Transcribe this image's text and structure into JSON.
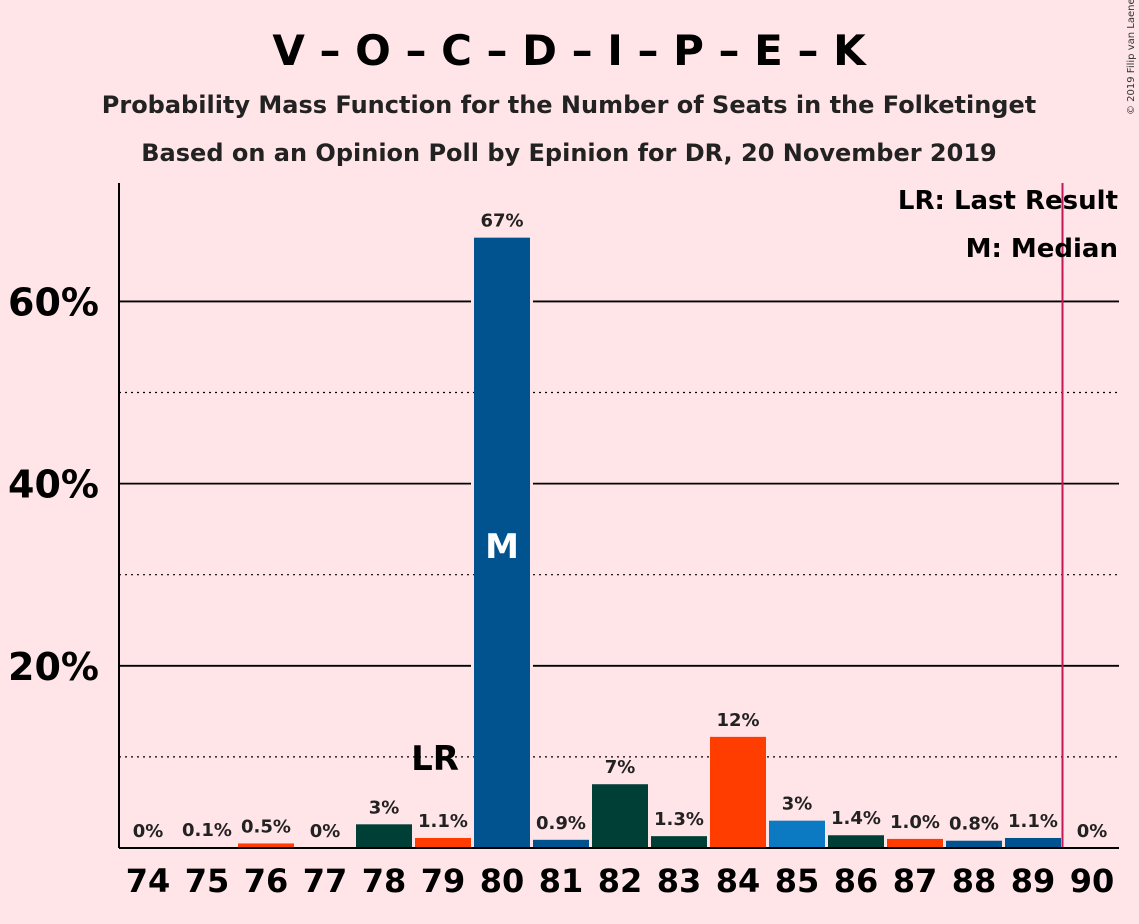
{
  "chart_data": {
    "type": "bar",
    "title": "V – O – C – D – I – P – E – K",
    "subtitle_1": "Probability Mass Function for the Number of Seats in the Folketinget",
    "subtitle_2": "Based on an Opinion Poll by Epinion for DR, 20 November 2019",
    "copyright": "© 2019 Filip van Laenen",
    "categories": [
      "74",
      "75",
      "76",
      "77",
      "78",
      "79",
      "80",
      "81",
      "82",
      "83",
      "84",
      "85",
      "86",
      "87",
      "88",
      "89",
      "90"
    ],
    "values": [
      0,
      0.1,
      0.5,
      0,
      2.6,
      1.1,
      67,
      0.9,
      7,
      1.3,
      12.2,
      3,
      1.4,
      1.0,
      0.8,
      1.1,
      0
    ],
    "value_labels": [
      "0%",
      "0.1%",
      "0.5%",
      "0%",
      "3%",
      "1.1%",
      "67%",
      "0.9%",
      "7%",
      "1.3%",
      "12%",
      "3%",
      "1.4%",
      "1.0%",
      "0.8%",
      "1.1%",
      "0%"
    ],
    "bar_colors": [
      "#FF3D00",
      "#0B7AC2",
      "#FF3D00",
      "#003F36",
      "#003F36",
      "#FF3D00",
      "#00538F",
      "#00538F",
      "#003F36",
      "#003F36",
      "#FF3D00",
      "#0B7AC2",
      "#003F36",
      "#FF3D00",
      "#00538F",
      "#00538F",
      "#00538F"
    ],
    "ylim": [
      0,
      73
    ],
    "yticks_major": [
      20,
      40,
      60
    ],
    "ytick_labels": [
      "20%",
      "40%",
      "60%"
    ],
    "yticks_minor": [
      10,
      30,
      50
    ],
    "last_result_seat": "79",
    "last_result_label": "LR",
    "median_seat": "80",
    "median_label": "M",
    "majority_line_x": 89.5,
    "majority_line_color": "#C2185B",
    "legend": [
      "LR: Last Result",
      "M: Median"
    ],
    "legend_position": "top-right"
  }
}
